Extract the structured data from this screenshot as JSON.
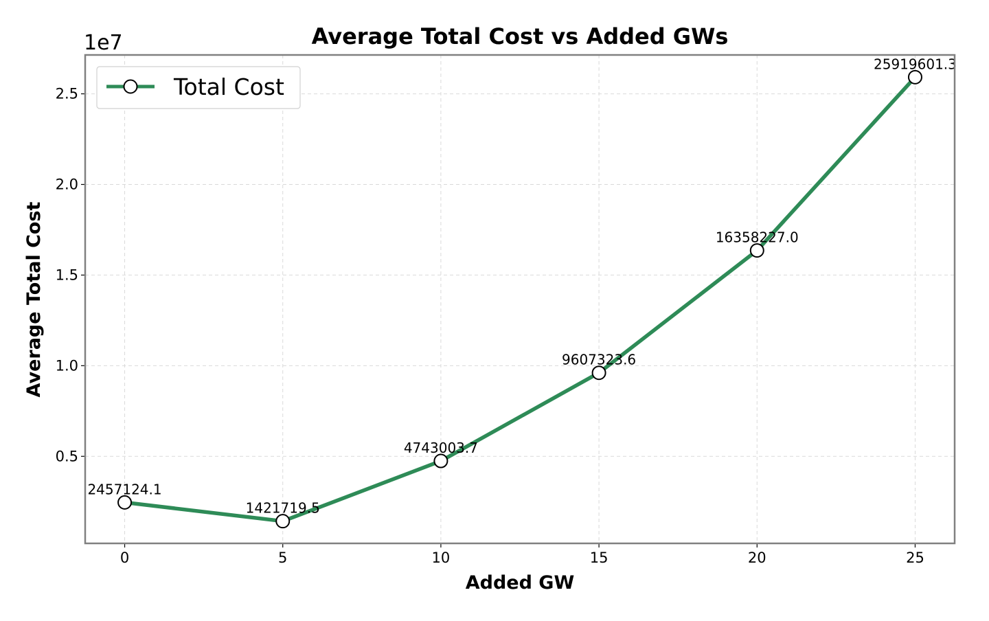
{
  "chart_data": {
    "type": "line",
    "title": "Average Total Cost vs Added GWs",
    "xlabel": "Added GW",
    "ylabel": "Average Total Cost",
    "y_offset_label": "1e7",
    "xlim": [
      -1.25,
      26.25
    ],
    "ylim": [
      196825,
      27144495
    ],
    "x_ticks": [
      0,
      5,
      10,
      15,
      20,
      25
    ],
    "x_tick_labels": [
      "0",
      "5",
      "10",
      "15",
      "20",
      "25"
    ],
    "y_ticks": [
      5000000,
      10000000,
      15000000,
      20000000,
      25000000
    ],
    "y_tick_labels": [
      "0.5",
      "1.0",
      "1.5",
      "2.0",
      "2.5"
    ],
    "grid": true,
    "legend_position": "top-left",
    "series": [
      {
        "name": "Total Cost",
        "color": "#2e8b57",
        "marker": "white circle with black edge",
        "x": [
          0,
          5,
          10,
          15,
          20,
          25
        ],
        "y": [
          2457124.1,
          1421719.5,
          4743003.7,
          9607323.6,
          16358227.0,
          25919601.3
        ],
        "data_labels": [
          "2457124.1",
          "1421719.5",
          "4743003.7",
          "9607323.6",
          "16358227.0",
          "25919601.3"
        ]
      }
    ]
  }
}
